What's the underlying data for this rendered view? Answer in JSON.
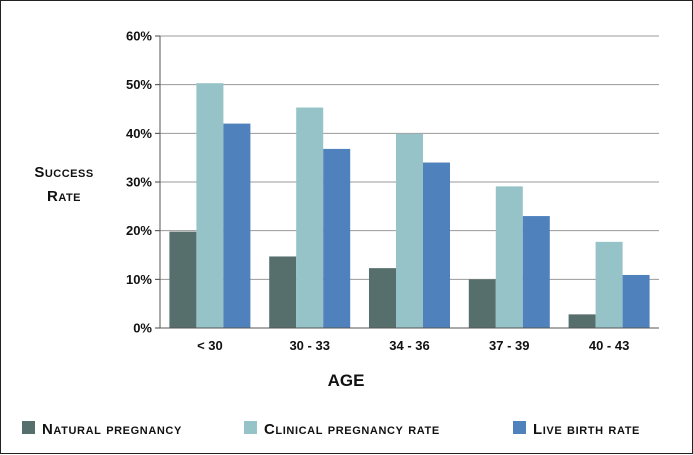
{
  "chart_data": {
    "type": "bar",
    "title": "",
    "xlabel": "AGE",
    "ylabel_lines": [
      "Success",
      "Rate"
    ],
    "categories": [
      "< 30",
      "30 - 33",
      "34 - 36",
      "37 - 39",
      "40 - 43"
    ],
    "ylim": [
      0,
      60
    ],
    "yticks": [
      0,
      10,
      20,
      30,
      40,
      50,
      60
    ],
    "ytick_labels": [
      "0%",
      "10%",
      "20%",
      "30%",
      "40%",
      "50%",
      "60%"
    ],
    "unit": "%",
    "grid": true,
    "legend_position": "bottom",
    "series": [
      {
        "name": "Natural pregnancy",
        "color": "#566f6c",
        "values": [
          19.8,
          14.7,
          12.3,
          10.0,
          2.8
        ]
      },
      {
        "name": "Clinical pregnancy rate",
        "color": "#95c3c7",
        "values": [
          50.3,
          45.3,
          39.9,
          29.1,
          17.7
        ]
      },
      {
        "name": "Live birth rate",
        "color": "#4f81bd",
        "values": [
          42.0,
          36.8,
          34.0,
          23.0,
          10.9
        ]
      }
    ]
  }
}
